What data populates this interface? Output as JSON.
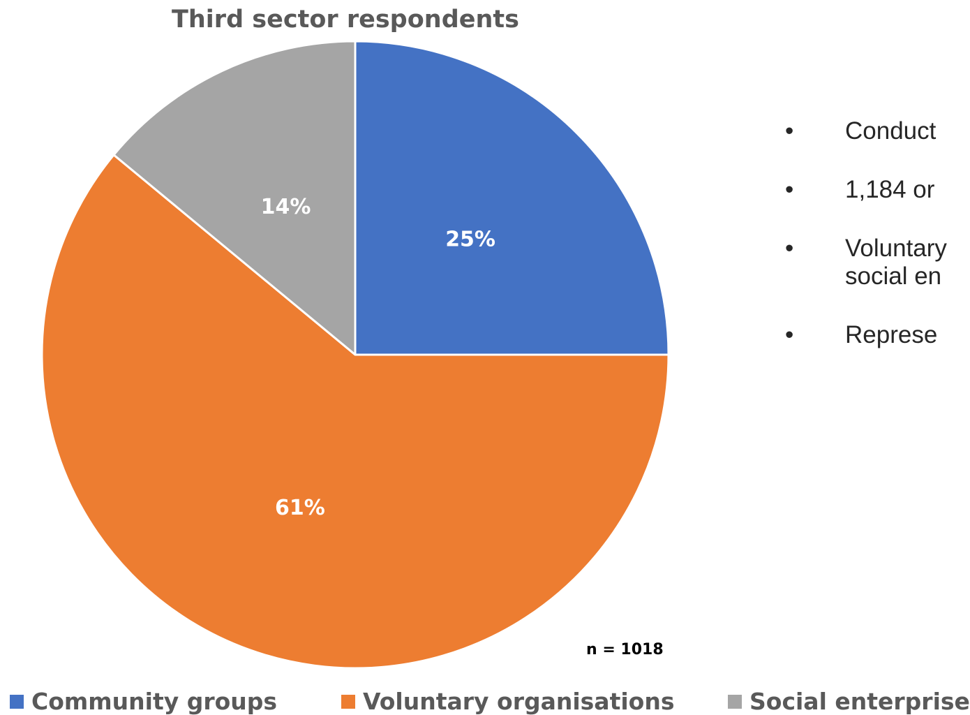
{
  "chart_data": {
    "type": "pie",
    "title": "Third sector respondents",
    "slices": [
      {
        "label": "Community groups",
        "value": 25,
        "display": "25%",
        "color": "#4472C4"
      },
      {
        "label": "Voluntary organisations",
        "value": 61,
        "display": "61%",
        "color": "#ED7D31"
      },
      {
        "label": "Social enterprises",
        "value": 14,
        "display": "14%",
        "color": "#A5A5A5"
      }
    ],
    "note": "n = 1018",
    "legend_position": "bottom",
    "start_angle": "12 o'clock",
    "direction": "clockwise"
  },
  "bullets": [
    {
      "line1": "Conduct"
    },
    {
      "line1": "1,184 or"
    },
    {
      "line1": "Voluntary",
      "line2": "social en"
    },
    {
      "line1": "Represe"
    }
  ]
}
